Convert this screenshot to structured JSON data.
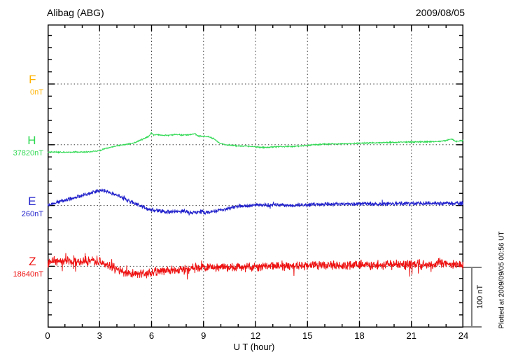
{
  "header": {
    "station": "Alibag (ABG)",
    "date": "2009/08/05"
  },
  "footer": {
    "plotted_at": "Plotted at 2009/09/05 00:56 UT"
  },
  "x_axis": {
    "title": "U T (hour)",
    "tick_labels": [
      "0",
      "3",
      "6",
      "9",
      "12",
      "15",
      "18",
      "21",
      "24"
    ]
  },
  "scale_bar": {
    "label": "100 nT",
    "nT": 100
  },
  "chart_data": {
    "type": "line",
    "title": "Alibag (ABG)",
    "subtitle": "2009/08/05",
    "xlabel": "U T (hour)",
    "x_range": [
      0,
      24
    ],
    "x_major_ticks": [
      0,
      3,
      6,
      9,
      12,
      15,
      18,
      21,
      24
    ],
    "x_minor_step_hours": 1,
    "y_minor_step_nT": 20,
    "baseline_spacing_nT": 100,
    "grid": {
      "vertical_at_hours": [
        3,
        6,
        9,
        12,
        15,
        18,
        21
      ],
      "horizontal_at_baselines": true,
      "style": "dotted"
    },
    "legend_position": "left-margin",
    "series": [
      {
        "channel": "F",
        "baseline_label": "0nT",
        "color": "#FFB300",
        "has_data": false,
        "anchors_h": [],
        "anchors_nT": [],
        "noise_nT": 0,
        "spike_prob": 0,
        "spike_mult": 1
      },
      {
        "channel": "H",
        "baseline_label": "37820nT",
        "color": "#2FD952",
        "has_data": true,
        "anchors_h": [
          0,
          0.5,
          1,
          1.5,
          2,
          2.5,
          3,
          3.3,
          3.7,
          4.1,
          4.5,
          5,
          5.4,
          5.8,
          6,
          6.1,
          6.3,
          6.6,
          7,
          7.4,
          7.8,
          8.2,
          8.5,
          8.7,
          9,
          9.3,
          9.6,
          9.9,
          10.3,
          10.8,
          11.3,
          12,
          12.5,
          13,
          13.5,
          14,
          14.5,
          15,
          15.5,
          16,
          17,
          18,
          19,
          20,
          21,
          22,
          22.6,
          23,
          23.3,
          23.6,
          24
        ],
        "anchors_nT": [
          -12,
          -12,
          -12.5,
          -12,
          -12,
          -11.5,
          -9.5,
          -6.5,
          -4,
          -1,
          0.5,
          3,
          8,
          13,
          20,
          16,
          16.5,
          16,
          15.5,
          17,
          16,
          16.5,
          18.5,
          14.5,
          14,
          13,
          10,
          3,
          0,
          -1.5,
          -2,
          -3.5,
          -4.5,
          -3.5,
          -3,
          -3,
          -2,
          -1,
          0,
          1.2,
          1.6,
          2.5,
          3.2,
          4,
          4.6,
          5,
          5.5,
          7,
          9.5,
          5.5,
          7
        ],
        "noise_nT": 1.2,
        "spike_prob": 0,
        "spike_mult": 1
      },
      {
        "channel": "E",
        "baseline_label": "260nT",
        "color": "#2222CC",
        "has_data": true,
        "anchors_h": [
          0,
          0.5,
          1,
          1.5,
          2,
          2.5,
          3,
          3.4,
          4,
          4.5,
          5,
          5.5,
          6,
          6.5,
          7,
          7.5,
          8,
          8.4,
          8.8,
          9.2,
          9.6,
          10,
          10.5,
          11,
          11.5,
          12,
          13,
          14,
          15,
          16,
          17,
          18,
          19,
          20,
          21,
          22,
          23,
          24
        ],
        "anchors_nT": [
          0,
          5,
          9,
          13,
          17,
          21,
          24,
          23,
          17,
          10,
          3.5,
          -2,
          -7,
          -9,
          -10.5,
          -10,
          -9.5,
          -11.5,
          -10.5,
          -11,
          -9,
          -7,
          -4.5,
          -1.5,
          -0.5,
          0.5,
          1,
          0,
          1,
          2,
          2.5,
          3,
          2.5,
          3,
          3.5,
          3.5,
          3,
          3.5
        ],
        "noise_nT": 4,
        "spike_prob": 0.02,
        "spike_mult": 2.2
      },
      {
        "channel": "Z",
        "baseline_label": "18640nT",
        "color": "#EE1111",
        "has_data": true,
        "anchors_h": [
          0,
          0.5,
          1,
          1.5,
          2,
          2.5,
          3,
          3.5,
          4,
          4.5,
          5,
          5.5,
          6,
          6.5,
          7,
          7.5,
          8,
          8.5,
          9,
          9.5,
          10,
          11,
          12,
          13,
          14,
          15,
          16,
          17,
          18,
          19,
          20,
          21,
          22,
          22.8,
          23.5,
          24
        ],
        "anchors_nT": [
          6,
          8,
          9,
          7,
          8,
          9,
          7,
          2,
          -6,
          -10.5,
          -13,
          -12,
          -10.5,
          -8,
          -7,
          -6,
          -5,
          -3.5,
          -2.5,
          -2,
          -1.5,
          -1,
          0,
          0.5,
          1,
          1,
          1.5,
          1.5,
          2,
          2,
          2.5,
          3,
          3,
          6,
          3,
          2
        ],
        "noise_nT": 9,
        "spike_prob": 0.05,
        "spike_mult": 2.3
      }
    ]
  }
}
